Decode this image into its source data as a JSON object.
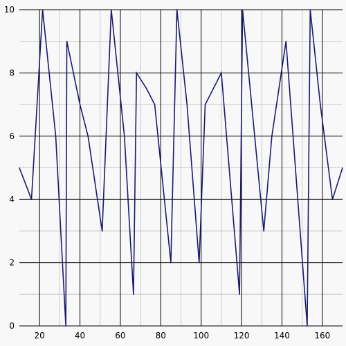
{
  "chart_data": {
    "type": "line",
    "title": "",
    "xlabel": "",
    "ylabel": "",
    "xlim": [
      10,
      170
    ],
    "ylim": [
      0,
      10
    ],
    "x_ticks": [
      20,
      40,
      60,
      80,
      100,
      120,
      140,
      160
    ],
    "y_ticks": [
      0,
      2,
      4,
      6,
      8,
      10
    ],
    "x_minor_ticks": [
      30,
      50,
      70,
      90,
      110,
      130,
      150
    ],
    "y_minor_ticks": [
      1,
      3,
      5,
      7,
      9
    ],
    "grid": true,
    "legend": "none",
    "series": [
      {
        "color": "#1a1a6e",
        "x": [
          10,
          16,
          21.5,
          28,
          33,
          33.5,
          40,
          44,
          51,
          55.5,
          62,
          66.5,
          68,
          73,
          77,
          85,
          88,
          93,
          99,
          102,
          110,
          119,
          120.5,
          131,
          135,
          142,
          152.5,
          154,
          159,
          165,
          170
        ],
        "y": [
          5,
          4,
          10,
          6,
          0,
          9,
          7,
          6,
          3,
          10,
          6,
          1,
          8,
          7.5,
          7,
          2,
          10,
          7,
          2,
          7,
          8,
          1,
          10,
          3,
          6,
          9,
          0,
          10,
          7,
          4,
          5
        ]
      }
    ]
  }
}
